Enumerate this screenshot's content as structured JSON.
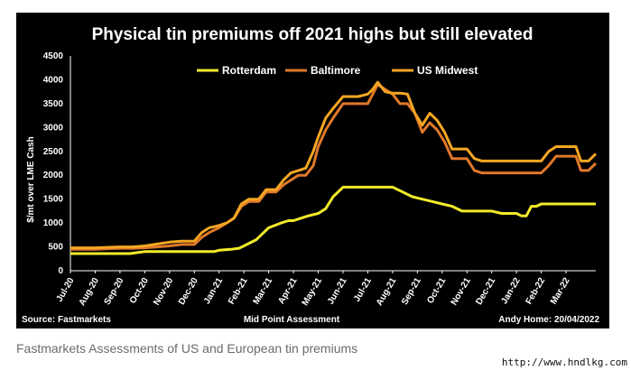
{
  "caption": "Fastmarkets Assessments of US and European tin premiums",
  "watermark": "http://www.hndlkg.com",
  "chart_data": {
    "type": "line",
    "title": "Physical tin premiums off 2021 highs but still elevated",
    "ylabel": "$/mt over LME Cash",
    "xlabel": "Mid Point Assessment",
    "source": "Source: Fastmarkets",
    "credit": "Andy Home: 20/04/2022",
    "ylim": [
      0,
      4500
    ],
    "yticks": [
      0,
      500,
      1000,
      1500,
      2000,
      2500,
      3000,
      3500,
      4000,
      4500
    ],
    "categories": [
      "Jul-20",
      "Aug-20",
      "Sep-20",
      "Oct-20",
      "Nov-20",
      "Dec-20",
      "Jan-21",
      "Feb-21",
      "Mar-21",
      "Apr-21",
      "May-21",
      "Jun-21",
      "Jul-21",
      "Aug-21",
      "Sep-21",
      "Oct-21",
      "Nov-21",
      "Dec-21",
      "Jan-22",
      "Feb-22",
      "Mar-22"
    ],
    "grid": false,
    "legend": "top",
    "series": [
      {
        "name": "Rotterdam",
        "color": "#f2ea2a",
        "values": [
          [
            0.0,
            360
          ],
          [
            1.0,
            360
          ],
          [
            2.0,
            360
          ],
          [
            2.4,
            360
          ],
          [
            2.7,
            380
          ],
          [
            3.0,
            400
          ],
          [
            3.5,
            400
          ],
          [
            4.0,
            400
          ],
          [
            4.5,
            400
          ],
          [
            5.0,
            400
          ],
          [
            5.5,
            400
          ],
          [
            5.8,
            400
          ],
          [
            6.0,
            430
          ],
          [
            6.5,
            450
          ],
          [
            6.8,
            470
          ],
          [
            7.0,
            520
          ],
          [
            7.5,
            650
          ],
          [
            7.8,
            800
          ],
          [
            8.0,
            900
          ],
          [
            8.5,
            1000
          ],
          [
            8.8,
            1050
          ],
          [
            9.0,
            1050
          ],
          [
            9.3,
            1100
          ],
          [
            9.6,
            1150
          ],
          [
            10.0,
            1200
          ],
          [
            10.3,
            1300
          ],
          [
            10.6,
            1550
          ],
          [
            11.0,
            1750
          ],
          [
            11.5,
            1750
          ],
          [
            12.0,
            1750
          ],
          [
            12.5,
            1750
          ],
          [
            13.0,
            1750
          ],
          [
            13.4,
            1650
          ],
          [
            13.8,
            1550
          ],
          [
            14.2,
            1500
          ],
          [
            14.6,
            1450
          ],
          [
            15.0,
            1400
          ],
          [
            15.4,
            1350
          ],
          [
            15.8,
            1250
          ],
          [
            16.2,
            1250
          ],
          [
            16.6,
            1250
          ],
          [
            17.0,
            1250
          ],
          [
            17.4,
            1200
          ],
          [
            17.8,
            1200
          ],
          [
            18.0,
            1200
          ],
          [
            18.2,
            1150
          ],
          [
            18.4,
            1150
          ],
          [
            18.6,
            1350
          ],
          [
            18.8,
            1350
          ],
          [
            19.0,
            1400
          ],
          [
            19.5,
            1400
          ],
          [
            20.0,
            1400
          ],
          [
            20.5,
            1400
          ],
          [
            21.0,
            1400
          ],
          [
            21.2,
            1400
          ]
        ]
      },
      {
        "name": "Baltimore",
        "color": "#e0782a",
        "values": [
          [
            0.0,
            450
          ],
          [
            1.0,
            450
          ],
          [
            2.0,
            470
          ],
          [
            2.5,
            470
          ],
          [
            3.0,
            480
          ],
          [
            3.5,
            500
          ],
          [
            4.0,
            520
          ],
          [
            4.5,
            550
          ],
          [
            5.0,
            550
          ],
          [
            5.3,
            700
          ],
          [
            5.6,
            800
          ],
          [
            6.0,
            900
          ],
          [
            6.3,
            1000
          ],
          [
            6.6,
            1100
          ],
          [
            6.9,
            1350
          ],
          [
            7.2,
            1450
          ],
          [
            7.6,
            1450
          ],
          [
            7.9,
            1650
          ],
          [
            8.3,
            1650
          ],
          [
            8.6,
            1800
          ],
          [
            8.9,
            1900
          ],
          [
            9.2,
            2000
          ],
          [
            9.5,
            2000
          ],
          [
            9.8,
            2200
          ],
          [
            10.0,
            2600
          ],
          [
            10.3,
            2950
          ],
          [
            10.6,
            3200
          ],
          [
            11.0,
            3500
          ],
          [
            11.3,
            3500
          ],
          [
            11.6,
            3500
          ],
          [
            12.0,
            3500
          ],
          [
            12.2,
            3700
          ],
          [
            12.4,
            3900
          ],
          [
            12.7,
            3800
          ],
          [
            13.0,
            3700
          ],
          [
            13.3,
            3500
          ],
          [
            13.6,
            3500
          ],
          [
            13.9,
            3300
          ],
          [
            14.2,
            2900
          ],
          [
            14.5,
            3100
          ],
          [
            14.8,
            2950
          ],
          [
            15.1,
            2700
          ],
          [
            15.4,
            2350
          ],
          [
            15.7,
            2350
          ],
          [
            16.0,
            2350
          ],
          [
            16.3,
            2100
          ],
          [
            16.6,
            2050
          ],
          [
            17.0,
            2050
          ],
          [
            17.5,
            2050
          ],
          [
            18.0,
            2050
          ],
          [
            18.5,
            2050
          ],
          [
            19.0,
            2050
          ],
          [
            19.3,
            2200
          ],
          [
            19.6,
            2400
          ],
          [
            20.0,
            2400
          ],
          [
            20.4,
            2400
          ],
          [
            20.6,
            2100
          ],
          [
            20.9,
            2100
          ],
          [
            21.2,
            2250
          ]
        ]
      },
      {
        "name": "US Midwest",
        "color": "#f5a623",
        "values": [
          [
            0.0,
            480
          ],
          [
            1.0,
            480
          ],
          [
            2.0,
            500
          ],
          [
            2.5,
            500
          ],
          [
            3.0,
            520
          ],
          [
            3.5,
            560
          ],
          [
            4.0,
            600
          ],
          [
            4.5,
            620
          ],
          [
            5.0,
            620
          ],
          [
            5.3,
            800
          ],
          [
            5.6,
            900
          ],
          [
            6.0,
            950
          ],
          [
            6.3,
            1000
          ],
          [
            6.6,
            1100
          ],
          [
            6.9,
            1400
          ],
          [
            7.2,
            1500
          ],
          [
            7.6,
            1500
          ],
          [
            7.9,
            1700
          ],
          [
            8.3,
            1700
          ],
          [
            8.6,
            1900
          ],
          [
            8.9,
            2050
          ],
          [
            9.2,
            2100
          ],
          [
            9.5,
            2150
          ],
          [
            9.8,
            2500
          ],
          [
            10.0,
            2800
          ],
          [
            10.3,
            3200
          ],
          [
            10.6,
            3400
          ],
          [
            11.0,
            3650
          ],
          [
            11.3,
            3650
          ],
          [
            11.6,
            3650
          ],
          [
            12.0,
            3700
          ],
          [
            12.2,
            3800
          ],
          [
            12.4,
            3950
          ],
          [
            12.7,
            3750
          ],
          [
            13.0,
            3720
          ],
          [
            13.3,
            3720
          ],
          [
            13.6,
            3700
          ],
          [
            13.9,
            3300
          ],
          [
            14.2,
            3050
          ],
          [
            14.5,
            3300
          ],
          [
            14.8,
            3150
          ],
          [
            15.1,
            2900
          ],
          [
            15.4,
            2550
          ],
          [
            15.7,
            2550
          ],
          [
            16.0,
            2550
          ],
          [
            16.3,
            2350
          ],
          [
            16.6,
            2300
          ],
          [
            17.0,
            2300
          ],
          [
            17.5,
            2300
          ],
          [
            18.0,
            2300
          ],
          [
            18.5,
            2300
          ],
          [
            19.0,
            2300
          ],
          [
            19.3,
            2500
          ],
          [
            19.6,
            2600
          ],
          [
            20.0,
            2600
          ],
          [
            20.4,
            2600
          ],
          [
            20.6,
            2300
          ],
          [
            20.9,
            2300
          ],
          [
            21.2,
            2450
          ]
        ]
      }
    ]
  }
}
